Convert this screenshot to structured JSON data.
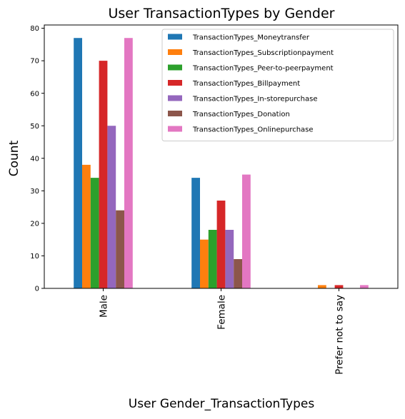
{
  "chart_data": {
    "type": "bar",
    "title": "User TransactionTypes by Gender",
    "xlabel": "User Gender_TransactionTypes",
    "ylabel": "Count",
    "categories": [
      "Male",
      "Female",
      "Prefer not to say"
    ],
    "ylim": [
      0,
      81
    ],
    "yticks": [
      0,
      10,
      20,
      30,
      40,
      50,
      60,
      70,
      80
    ],
    "grid": false,
    "legend_position": "top-right",
    "series": [
      {
        "name": "TransactionTypes_Moneytransfer",
        "color": "#1f77b4",
        "values": [
          77,
          34,
          0
        ]
      },
      {
        "name": "TransactionTypes_Subscriptionpayment",
        "color": "#ff7f0e",
        "values": [
          38,
          15,
          1
        ]
      },
      {
        "name": "TransactionTypes_Peer-to-peerpayment",
        "color": "#2ca02c",
        "values": [
          34,
          18,
          0
        ]
      },
      {
        "name": "TransactionTypes_Billpayment",
        "color": "#d62728",
        "values": [
          70,
          27,
          1
        ]
      },
      {
        "name": "TransactionTypes_In-storepurchase",
        "color": "#9467bd",
        "values": [
          50,
          18,
          0
        ]
      },
      {
        "name": "TransactionTypes_Donation",
        "color": "#8c564b",
        "values": [
          24,
          9,
          0
        ]
      },
      {
        "name": "TransactionTypes_Onlinepurchase",
        "color": "#e377c2",
        "values": [
          77,
          35,
          1
        ]
      }
    ]
  }
}
